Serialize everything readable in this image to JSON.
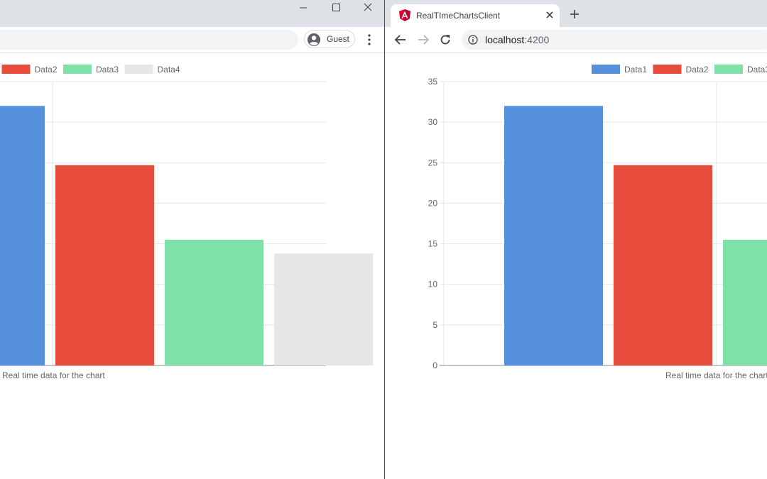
{
  "left_window": {
    "profile": {
      "label": "Guest",
      "icon": "account-circle-icon"
    },
    "controls": {
      "minimize_icon": "minimize-icon",
      "maximize_icon": "maximize-icon",
      "close_icon": "close-icon"
    },
    "menu_icon": "more-vert-icon"
  },
  "right_window": {
    "tab": {
      "title": "RealTImeChartsClient",
      "favicon": "angular-logo-icon",
      "close_icon": "close-icon"
    },
    "new_tab_icon": "plus-icon",
    "nav": {
      "back_icon": "arrow-left-icon",
      "forward_icon": "arrow-right-icon",
      "reload_icon": "reload-icon"
    },
    "address": {
      "info_icon": "info-icon",
      "host": "localhost",
      "port": ":4200"
    }
  },
  "colors": {
    "Data1": "#5490db",
    "Data2": "#e84c3d",
    "Data3": "#80e1a8",
    "Data4": "#e6e6e6",
    "grid": "#e6e6e6",
    "axis": "#888888",
    "text": "#666666"
  },
  "chart_data": [
    {
      "window": "left",
      "type": "bar",
      "title": "",
      "xlabel": "Real time data for the chart",
      "ylabel": "",
      "categories": [
        "Real time data for the chart"
      ],
      "series": [
        {
          "name": "Data1",
          "values": [
            32
          ]
        },
        {
          "name": "Data2",
          "values": [
            24.7
          ]
        },
        {
          "name": "Data3",
          "values": [
            15.5
          ]
        },
        {
          "name": "Data4",
          "values": [
            13.8
          ]
        }
      ],
      "legend": [
        "Data1",
        "Data2",
        "Data3",
        "Data4"
      ],
      "legend_placement": "top",
      "ylim": [
        0,
        35
      ],
      "yticks": [
        0,
        5,
        10,
        15,
        20,
        25,
        30,
        35
      ],
      "grid": true
    },
    {
      "window": "right",
      "type": "bar",
      "title": "",
      "xlabel": "Real time data for the chart",
      "ylabel": "",
      "categories": [
        "Real time data for the chart"
      ],
      "series": [
        {
          "name": "Data1",
          "values": [
            32
          ]
        },
        {
          "name": "Data2",
          "values": [
            24.7
          ]
        },
        {
          "name": "Data3",
          "values": [
            15.5
          ]
        },
        {
          "name": "Data4",
          "values": [
            13.8
          ]
        }
      ],
      "legend": [
        "Data1",
        "Data2",
        "Data3",
        "Data4"
      ],
      "legend_placement": "top",
      "ylim": [
        0,
        35
      ],
      "yticks": [
        0,
        5,
        10,
        15,
        20,
        25,
        30,
        35
      ],
      "grid": true
    }
  ]
}
